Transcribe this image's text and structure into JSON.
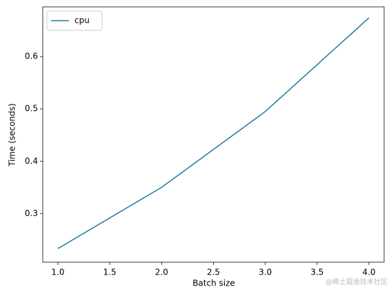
{
  "chart_data": {
    "type": "line",
    "xlabel": "Batch size",
    "ylabel": "Time (seconds)",
    "x": [
      1,
      2,
      3,
      4
    ],
    "series": [
      {
        "name": "cpu",
        "color": "#1a789c",
        "values": [
          0.233,
          0.35,
          0.495,
          0.674
        ]
      }
    ],
    "xlim": [
      0.854,
      4.146
    ],
    "xticks": [
      {
        "value": 1,
        "label": "1.0"
      },
      {
        "value": 1.5,
        "label": "1.5"
      },
      {
        "value": 2,
        "label": "2.0"
      },
      {
        "value": 2.5,
        "label": "2.5"
      },
      {
        "value": 3,
        "label": "3.0"
      },
      {
        "value": 3.5,
        "label": "3.5"
      },
      {
        "value": 4,
        "label": "4.0"
      }
    ],
    "ylim": [
      0.207,
      0.695
    ],
    "yticks": [
      0.3,
      0.4,
      0.5,
      0.6
    ],
    "grid": false,
    "legend": "upper left",
    "watermark": "@稀土掘金技术社区"
  }
}
